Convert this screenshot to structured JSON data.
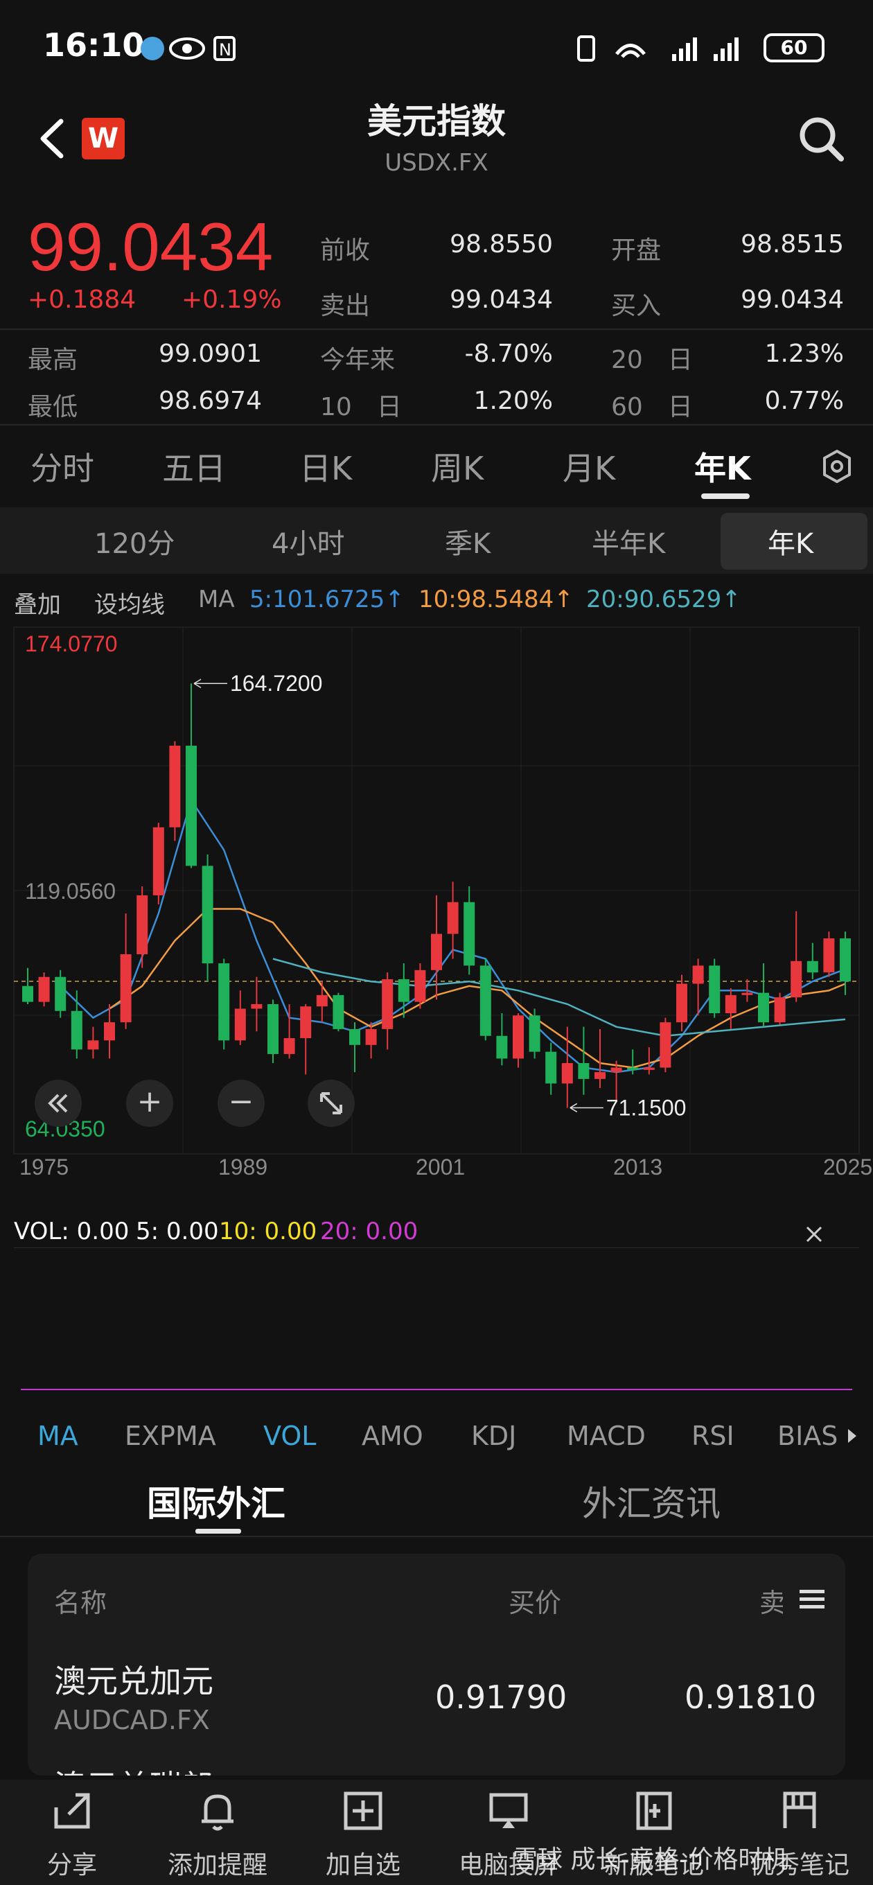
{
  "status": {
    "time": "16:10",
    "battery": "60"
  },
  "header": {
    "title": "美元指数",
    "symbol": "USDX.FX"
  },
  "quote": {
    "price": "99.0434",
    "change": "+0.1884",
    "change_pct": "+0.19%",
    "prev_close_label": "前收",
    "prev_close": "98.8550",
    "open_label": "开盘",
    "open": "98.8515",
    "sell_label": "卖出",
    "sell": "99.0434",
    "buy_label": "买入",
    "buy": "99.0434",
    "high_label": "最高",
    "high": "99.0901",
    "ytd_label": "今年来",
    "ytd": "-8.70%",
    "d20_label": "20　日",
    "d20": "1.23%",
    "low_label": "最低",
    "low": "98.6974",
    "d10_label": "10　日",
    "d10": "1.20%",
    "d60_label": "60　日",
    "d60": "0.77%"
  },
  "tabs": [
    "分时",
    "五日",
    "日K",
    "周K",
    "月K",
    "年K"
  ],
  "subtabs": [
    "120分",
    "4小时",
    "季K",
    "半年K",
    "年K"
  ],
  "ma_row": {
    "overlay": "叠加",
    "set_ma": "设均线",
    "ma": "MA",
    "ma5": "5:101.6725↑",
    "ma10": "10:98.5484↑",
    "ma20": "20:90.6529↑"
  },
  "chart_data": {
    "type": "candlestick",
    "title": "",
    "y_top_label": "174.0770",
    "y_mid_label": "119.0560",
    "y_bottom_label": "64.0350",
    "ylim": [
      64.035,
      174.077
    ],
    "x_ticks": [
      "1975",
      "1989",
      "2001",
      "2013",
      "2025"
    ],
    "annotations": [
      {
        "text": "164.7200",
        "year": 1985,
        "value": 164.72
      },
      {
        "text": "71.1500",
        "year": 2008,
        "value": 71.15
      }
    ],
    "reference_line": 99.0434,
    "candles": [
      {
        "year": 1975,
        "o": 98.0,
        "h": 102.0,
        "l": 94.0,
        "c": 94.5
      },
      {
        "year": 1976,
        "o": 94.5,
        "h": 101.0,
        "l": 93.5,
        "c": 100.0
      },
      {
        "year": 1977,
        "o": 100.0,
        "h": 101.5,
        "l": 91.0,
        "c": 92.5
      },
      {
        "year": 1978,
        "o": 92.5,
        "h": 97.0,
        "l": 82.0,
        "c": 84.0
      },
      {
        "year": 1979,
        "o": 84.0,
        "h": 89.0,
        "l": 82.0,
        "c": 86.0
      },
      {
        "year": 1980,
        "o": 86.0,
        "h": 94.0,
        "l": 82.0,
        "c": 90.0
      },
      {
        "year": 1981,
        "o": 90.0,
        "h": 114.0,
        "l": 88.5,
        "c": 105.0
      },
      {
        "year": 1982,
        "o": 105.0,
        "h": 120.0,
        "l": 102.0,
        "c": 118.0
      },
      {
        "year": 1983,
        "o": 118.0,
        "h": 134.0,
        "l": 116.0,
        "c": 133.0
      },
      {
        "year": 1984,
        "o": 133.0,
        "h": 152.0,
        "l": 130.0,
        "c": 151.0
      },
      {
        "year": 1985,
        "o": 151.0,
        "h": 164.72,
        "l": 124.0,
        "c": 124.5
      },
      {
        "year": 1986,
        "o": 124.5,
        "h": 127.0,
        "l": 99.0,
        "c": 103.0
      },
      {
        "year": 1987,
        "o": 103.0,
        "h": 104.0,
        "l": 84.0,
        "c": 86.0
      },
      {
        "year": 1988,
        "o": 86.0,
        "h": 97.0,
        "l": 85.0,
        "c": 93.0
      },
      {
        "year": 1989,
        "o": 93.0,
        "h": 100.0,
        "l": 88.0,
        "c": 94.0
      },
      {
        "year": 1990,
        "o": 94.0,
        "h": 95.0,
        "l": 81.0,
        "c": 83.0
      },
      {
        "year": 1991,
        "o": 83.0,
        "h": 94.0,
        "l": 82.0,
        "c": 86.5
      },
      {
        "year": 1992,
        "o": 86.5,
        "h": 94.0,
        "l": 78.5,
        "c": 93.5
      },
      {
        "year": 1993,
        "o": 93.5,
        "h": 99.0,
        "l": 90.0,
        "c": 96.0
      },
      {
        "year": 1994,
        "o": 96.0,
        "h": 96.5,
        "l": 88.0,
        "c": 88.5
      },
      {
        "year": 1995,
        "o": 88.5,
        "h": 90.0,
        "l": 79.0,
        "c": 85.0
      },
      {
        "year": 1996,
        "o": 85.0,
        "h": 90.0,
        "l": 82.0,
        "c": 88.5
      },
      {
        "year": 1997,
        "o": 88.5,
        "h": 101.0,
        "l": 84.0,
        "c": 99.5
      },
      {
        "year": 1998,
        "o": 99.5,
        "h": 103.0,
        "l": 91.0,
        "c": 94.5
      },
      {
        "year": 1999,
        "o": 94.5,
        "h": 103.0,
        "l": 93.0,
        "c": 101.5
      },
      {
        "year": 2000,
        "o": 101.5,
        "h": 118.0,
        "l": 95.0,
        "c": 109.5
      },
      {
        "year": 2001,
        "o": 109.5,
        "h": 121.0,
        "l": 104.0,
        "c": 116.5
      },
      {
        "year": 2002,
        "o": 116.5,
        "h": 120.0,
        "l": 100.5,
        "c": 102.5
      },
      {
        "year": 2003,
        "o": 102.5,
        "h": 104.0,
        "l": 86.0,
        "c": 87.0
      },
      {
        "year": 2004,
        "o": 87.0,
        "h": 92.0,
        "l": 80.5,
        "c": 82.0
      },
      {
        "year": 2005,
        "o": 82.0,
        "h": 92.0,
        "l": 80.0,
        "c": 91.5
      },
      {
        "year": 2006,
        "o": 91.5,
        "h": 93.0,
        "l": 82.0,
        "c": 83.5
      },
      {
        "year": 2007,
        "o": 83.5,
        "h": 85.5,
        "l": 74.0,
        "c": 76.5
      },
      {
        "year": 2008,
        "o": 76.5,
        "h": 89.0,
        "l": 71.15,
        "c": 81.0
      },
      {
        "year": 2009,
        "o": 81.0,
        "h": 89.0,
        "l": 74.0,
        "c": 77.5
      },
      {
        "year": 2010,
        "o": 77.5,
        "h": 88.5,
        "l": 75.5,
        "c": 79.0
      },
      {
        "year": 2011,
        "o": 79.0,
        "h": 81.5,
        "l": 72.5,
        "c": 80.0
      },
      {
        "year": 2012,
        "o": 80.0,
        "h": 84.0,
        "l": 78.5,
        "c": 79.5
      },
      {
        "year": 2013,
        "o": 79.5,
        "h": 84.5,
        "l": 78.5,
        "c": 80.0
      },
      {
        "year": 2014,
        "o": 80.0,
        "h": 91.0,
        "l": 79.0,
        "c": 90.0
      },
      {
        "year": 2015,
        "o": 90.0,
        "h": 100.5,
        "l": 88.0,
        "c": 98.5
      },
      {
        "year": 2016,
        "o": 98.5,
        "h": 104.0,
        "l": 91.5,
        "c": 102.5
      },
      {
        "year": 2017,
        "o": 102.5,
        "h": 104.0,
        "l": 91.0,
        "c": 92.0
      },
      {
        "year": 2018,
        "o": 92.0,
        "h": 97.5,
        "l": 88.5,
        "c": 96.0
      },
      {
        "year": 2019,
        "o": 96.0,
        "h": 99.5,
        "l": 94.5,
        "c": 96.5
      },
      {
        "year": 2020,
        "o": 96.5,
        "h": 103.0,
        "l": 89.0,
        "c": 90.0
      },
      {
        "year": 2021,
        "o": 90.0,
        "h": 96.5,
        "l": 89.5,
        "c": 95.5
      },
      {
        "year": 2022,
        "o": 95.5,
        "h": 114.5,
        "l": 94.5,
        "c": 103.5
      },
      {
        "year": 2023,
        "o": 103.5,
        "h": 107.5,
        "l": 99.5,
        "c": 101.0
      },
      {
        "year": 2024,
        "o": 101.0,
        "h": 110.0,
        "l": 100.0,
        "c": 108.5
      },
      {
        "year": 2025,
        "o": 108.5,
        "h": 110.0,
        "l": 96.0,
        "c": 99.0
      }
    ],
    "ma_lines": [
      {
        "name": "MA5",
        "color": "#3b8fd9",
        "values": [
          [
            1977,
            98
          ],
          [
            1979,
            91
          ],
          [
            1981,
            95
          ],
          [
            1983,
            114
          ],
          [
            1985,
            139
          ],
          [
            1987,
            128
          ],
          [
            1989,
            108
          ],
          [
            1991,
            91
          ],
          [
            1993,
            90
          ],
          [
            1995,
            88
          ],
          [
            1997,
            91
          ],
          [
            1999,
            96
          ],
          [
            2001,
            106
          ],
          [
            2003,
            104
          ],
          [
            2005,
            93
          ],
          [
            2007,
            86
          ],
          [
            2009,
            80
          ],
          [
            2011,
            79
          ],
          [
            2013,
            80
          ],
          [
            2015,
            87
          ],
          [
            2017,
            97
          ],
          [
            2019,
            97
          ],
          [
            2021,
            95
          ],
          [
            2023,
            99
          ],
          [
            2025,
            101.7
          ]
        ]
      },
      {
        "name": "MA10",
        "color": "#f39c42",
        "values": [
          [
            1980,
            93
          ],
          [
            1982,
            98
          ],
          [
            1984,
            108
          ],
          [
            1986,
            115
          ],
          [
            1988,
            115
          ],
          [
            1990,
            112
          ],
          [
            1992,
            103
          ],
          [
            1994,
            93
          ],
          [
            1996,
            89
          ],
          [
            1998,
            92
          ],
          [
            2000,
            96
          ],
          [
            2002,
            98
          ],
          [
            2004,
            97
          ],
          [
            2006,
            91
          ],
          [
            2008,
            86
          ],
          [
            2010,
            81
          ],
          [
            2012,
            80
          ],
          [
            2014,
            82
          ],
          [
            2016,
            87
          ],
          [
            2018,
            91
          ],
          [
            2020,
            94
          ],
          [
            2022,
            96
          ],
          [
            2024,
            97
          ],
          [
            2025,
            98.5
          ]
        ]
      },
      {
        "name": "MA20",
        "color": "#4fb3bf",
        "values": [
          [
            1990,
            104
          ],
          [
            1993,
            101
          ],
          [
            1996,
            99
          ],
          [
            1999,
            98
          ],
          [
            2002,
            99
          ],
          [
            2005,
            97
          ],
          [
            2008,
            94
          ],
          [
            2011,
            89
          ],
          [
            2014,
            87
          ],
          [
            2017,
            88
          ],
          [
            2020,
            89
          ],
          [
            2023,
            90
          ],
          [
            2025,
            90.65
          ]
        ]
      }
    ]
  },
  "chart_controls": {
    "zoom_in": "+",
    "zoom_out": "−"
  },
  "vol": {
    "label": "VOL: 0.00",
    "v5": "5: 0.00",
    "v10": "10: 0.00",
    "v20": "20: 0.00",
    "c5": "#ffffff",
    "c10": "#f5e11e",
    "c20": "#d23cd2"
  },
  "indicators": [
    "MA",
    "EXPMA",
    "VOL",
    "AMO",
    "KDJ",
    "MACD",
    "RSI",
    "BIAS"
  ],
  "section_tabs": [
    "国际外汇",
    "外汇资讯"
  ],
  "fx_table": {
    "col_name": "名称",
    "col_bid": "买价",
    "col_ask": "卖",
    "rows": [
      {
        "name": "澳元兑加元",
        "code": "AUDCAD.FX",
        "bid": "0.91790",
        "ask": "0.91810"
      },
      {
        "name": "澳元兑瑞郎"
      }
    ]
  },
  "bottom_nav": [
    {
      "label": "分享",
      "icon": "share-icon"
    },
    {
      "label": "添加提醒",
      "icon": "bell-icon"
    },
    {
      "label": "加自选",
      "icon": "add-watchlist-icon"
    },
    {
      "label": "电脑投屏",
      "icon": "cast-icon"
    },
    {
      "label": "新版笔记",
      "icon": "note-icon"
    },
    {
      "label": "优秀笔记",
      "icon": "notebook-icon"
    }
  ],
  "watermark": "雪球 成长-竞格-价格时机"
}
